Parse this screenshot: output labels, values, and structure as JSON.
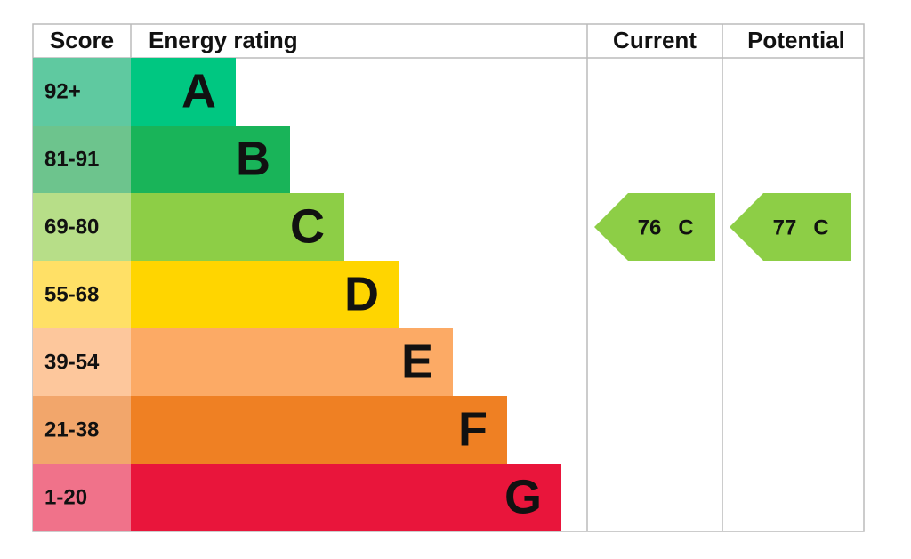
{
  "header": {
    "score": "Score",
    "rating": "Energy rating",
    "current": "Current",
    "potential": "Potential"
  },
  "bands": [
    {
      "score": "92+",
      "letter": "A",
      "color": "#00c781",
      "score_color": "#5fc9a0"
    },
    {
      "score": "81-91",
      "letter": "B",
      "color": "#19b459",
      "score_color": "#6dc48d"
    },
    {
      "score": "69-80",
      "letter": "C",
      "color": "#8dce46",
      "score_color": "#b7de88"
    },
    {
      "score": "55-68",
      "letter": "D",
      "color": "#ffd500",
      "score_color": "#ffe066"
    },
    {
      "score": "39-54",
      "letter": "E",
      "color": "#fcaa65",
      "score_color": "#fdc79c"
    },
    {
      "score": "21-38",
      "letter": "F",
      "color": "#ef8023",
      "score_color": "#f2a66b"
    },
    {
      "score": "1-20",
      "letter": "G",
      "color": "#e9153b",
      "score_color": "#f0728a"
    }
  ],
  "current": {
    "score": 76,
    "rating": "C"
  },
  "potential": {
    "score": 77,
    "rating": "C"
  }
}
